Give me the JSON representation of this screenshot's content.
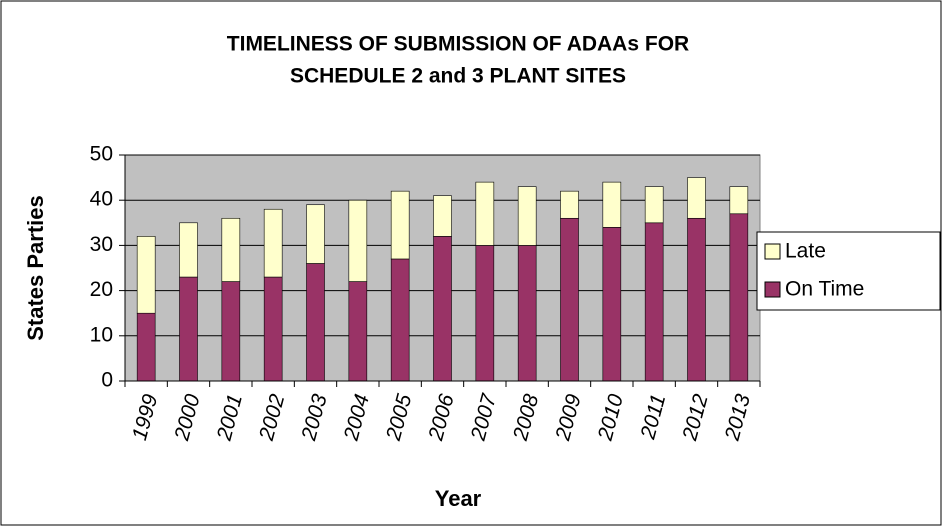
{
  "chart_data": {
    "type": "stacked_bar",
    "title": [
      "TIMELINESS OF SUBMISSION OF ADAAs FOR",
      "SCHEDULE 2 and 3 PLANT SITES"
    ],
    "x_label": "Year",
    "y_label": "States Parties",
    "categories": [
      "1999",
      "2000",
      "2001",
      "2002",
      "2003",
      "2004",
      "2005",
      "2006",
      "2007",
      "2008",
      "2009",
      "2010",
      "2011",
      "2012",
      "2013"
    ],
    "series": [
      {
        "name": "On Time",
        "color": "#993366",
        "values": [
          15,
          23,
          22,
          23,
          26,
          22,
          27,
          32,
          30,
          30,
          36,
          34,
          35,
          36,
          37
        ]
      },
      {
        "name": "Late",
        "color": "#ffffcc",
        "values": [
          17,
          12,
          14,
          15,
          13,
          18,
          15,
          9,
          14,
          13,
          6,
          10,
          8,
          9,
          6
        ]
      }
    ],
    "ylim": [
      0,
      50
    ],
    "yticks": [
      0,
      10,
      20,
      30,
      40,
      50
    ],
    "grid": true,
    "legend": "right"
  }
}
